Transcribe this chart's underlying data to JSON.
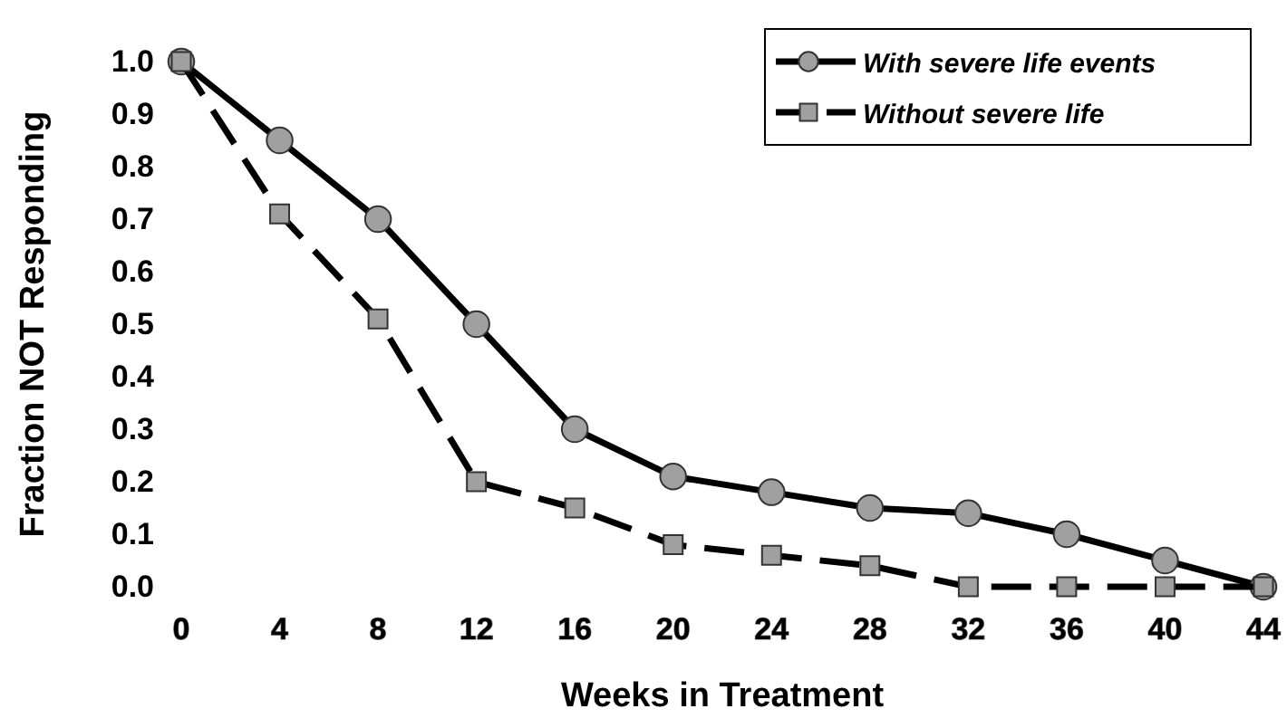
{
  "chart_data": {
    "type": "line",
    "xlabel": "Weeks in Treatment",
    "ylabel": "Fraction NOT Responding",
    "x": [
      0,
      4,
      8,
      12,
      16,
      20,
      24,
      28,
      32,
      36,
      40,
      44
    ],
    "xlim": [
      0,
      44
    ],
    "xticks": [
      0,
      4,
      8,
      12,
      16,
      20,
      24,
      28,
      32,
      36,
      40,
      44
    ],
    "ylim": [
      0,
      1
    ],
    "yticks": [
      {
        "value": 0,
        "label": "0.0"
      },
      {
        "value": 0.1,
        "label": "0.1"
      },
      {
        "value": 0.2,
        "label": "0.2"
      },
      {
        "value": 0.3,
        "label": "0.3"
      },
      {
        "value": 0.4,
        "label": "0.4"
      },
      {
        "value": 0.5,
        "label": "0.5"
      },
      {
        "value": 0.6,
        "label": "0.6"
      },
      {
        "value": 0.7,
        "label": "0.7"
      },
      {
        "value": 0.8,
        "label": "0.8"
      },
      {
        "value": 0.9,
        "label": "0.9"
      },
      {
        "value": 1,
        "label": "1.0"
      }
    ],
    "legend": "top right",
    "grid": false,
    "series": [
      {
        "name": "With severe life events",
        "color": "#000000",
        "marker": "circle",
        "line_style": "solid",
        "values": [
          1.0,
          0.85,
          0.7,
          0.5,
          0.3,
          0.21,
          0.18,
          0.15,
          0.14,
          0.1,
          0.05,
          0.0
        ]
      },
      {
        "name": "Without severe life",
        "color": "#000000",
        "marker": "square",
        "line_style": "dashed",
        "values": [
          1.0,
          0.71,
          0.51,
          0.2,
          0.15,
          0.08,
          0.06,
          0.04,
          0.0,
          0.0,
          0.0,
          0.0
        ]
      }
    ]
  }
}
